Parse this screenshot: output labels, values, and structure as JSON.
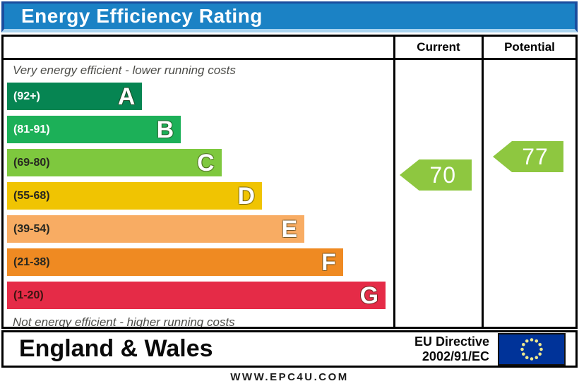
{
  "title": "Energy Efficiency Rating",
  "header": {
    "current": "Current",
    "potential": "Potential"
  },
  "notes": {
    "top": "Very energy efficient - lower running costs",
    "bottom": "Not energy efficient - higher running costs"
  },
  "bands": [
    {
      "letter": "A",
      "range": "(92+)",
      "color": "#068552",
      "range_color": "#ffffff",
      "width_pct": 35
    },
    {
      "letter": "B",
      "range": "(81-91)",
      "color": "#1CB058",
      "range_color": "#ffffff",
      "width_pct": 45
    },
    {
      "letter": "C",
      "range": "(69-80)",
      "color": "#7EC83E",
      "range_color": "#262620",
      "width_pct": 55.5
    },
    {
      "letter": "D",
      "range": "(55-68)",
      "color": "#F0C402",
      "range_color": "#262620",
      "width_pct": 66
    },
    {
      "letter": "E",
      "range": "(39-54)",
      "color": "#F8AC63",
      "range_color": "#262620",
      "width_pct": 77
    },
    {
      "letter": "F",
      "range": "(21-38)",
      "color": "#EF8A22",
      "range_color": "#262620",
      "width_pct": 87
    },
    {
      "letter": "G",
      "range": "(1-20)",
      "color": "#E52B47",
      "range_color": "#3A1510",
      "width_pct": 98
    }
  ],
  "ratings": {
    "current": {
      "value": "70",
      "arrow_color": "#8EC740"
    },
    "potential": {
      "value": "77",
      "arrow_color": "#8EC740"
    }
  },
  "footer": {
    "region": "England & Wales",
    "directive_line1": "EU Directive",
    "directive_line2": "2002/91/EC",
    "flag_color": "#003399"
  },
  "website": "WWW.EPC4U.COM",
  "chart_data": {
    "type": "bar",
    "title": "Energy Efficiency Rating",
    "categories": [
      "A (92+)",
      "B (81-91)",
      "C (69-80)",
      "D (55-68)",
      "E (39-54)",
      "F (21-38)",
      "G (1-20)"
    ],
    "band_colors": [
      "#068552",
      "#1CB058",
      "#7EC83E",
      "#F0C402",
      "#F8AC63",
      "#EF8A22",
      "#E52B47"
    ],
    "band_widths_pct": [
      35,
      45,
      55.5,
      66,
      77,
      87,
      98
    ],
    "scale": [
      1,
      100
    ],
    "series": [
      {
        "name": "Current",
        "value": 70,
        "band": "C",
        "marker_color": "#8EC740"
      },
      {
        "name": "Potential",
        "value": 77,
        "band": "C",
        "marker_color": "#8EC740"
      }
    ],
    "annotations": [
      "Very energy efficient - lower running costs",
      "Not energy efficient - higher running costs"
    ],
    "legend_position": "none",
    "grid": false
  }
}
